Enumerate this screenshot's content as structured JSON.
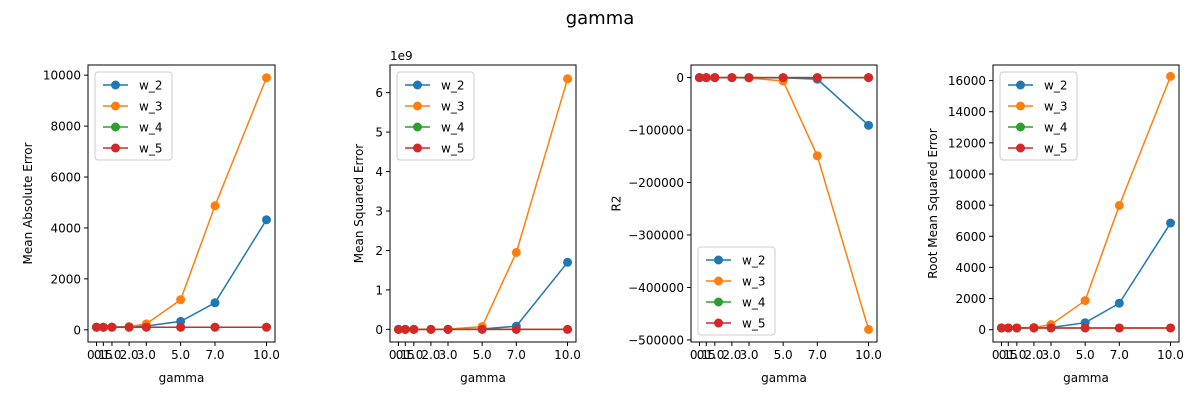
{
  "figure": {
    "suptitle": "gamma"
  },
  "chart_data": [
    {
      "type": "line",
      "xlabel": "gamma",
      "ylabel": "Mean Absolute Error",
      "y_offset_label": "",
      "x": [
        0.1,
        0.5,
        1.0,
        2.0,
        3.0,
        5.0,
        7.0,
        10.0
      ],
      "x_tick_labels": [
        "0.1",
        "0.5",
        "1.0",
        "2.0",
        "3.0",
        "5.0",
        "7.0",
        "10.0"
      ],
      "y_ticks": [
        0,
        2000,
        4000,
        6000,
        8000,
        10000
      ],
      "y_tick_labels": [
        "0",
        "2000",
        "4000",
        "6000",
        "8000",
        "10000"
      ],
      "ylim": [
        -480,
        10400
      ],
      "legend_position": "upper left",
      "series": [
        {
          "name": "w_2",
          "color": "#1f77b4",
          "values": [
            100,
            100,
            105,
            120,
            150,
            330,
            1060,
            4320
          ]
        },
        {
          "name": "w_3",
          "color": "#ff7f0e",
          "values": [
            100,
            100,
            105,
            125,
            230,
            1180,
            4870,
            9900
          ]
        },
        {
          "name": "w_4",
          "color": "#2ca02c",
          "values": [
            100,
            100,
            100,
            100,
            100,
            100,
            100,
            100
          ]
        },
        {
          "name": "w_5",
          "color": "#d62728",
          "values": [
            100,
            100,
            100,
            100,
            100,
            100,
            100,
            100
          ]
        }
      ]
    },
    {
      "type": "line",
      "xlabel": "gamma",
      "ylabel": "Mean Squared Error",
      "y_offset_label": "1e9",
      "x": [
        0.1,
        0.5,
        1.0,
        2.0,
        3.0,
        5.0,
        7.0,
        10.0
      ],
      "x_tick_labels": [
        "0.1",
        "0.5",
        "1.0",
        "2.0",
        "3.0",
        "5.0",
        "7.0",
        "10.0"
      ],
      "y_ticks": [
        0,
        1,
        2,
        3,
        4,
        5,
        6
      ],
      "y_tick_labels": [
        "0",
        "1",
        "2",
        "3",
        "4",
        "5",
        "6"
      ],
      "ylim": [
        -0.32,
        6.7
      ],
      "legend_position": "upper left",
      "series": [
        {
          "name": "w_2",
          "color": "#1f77b4",
          "values": [
            0,
            0,
            0,
            0,
            0,
            0.01,
            0.08,
            1.7
          ]
        },
        {
          "name": "w_3",
          "color": "#ff7f0e",
          "values": [
            0,
            0,
            0,
            0,
            0.005,
            0.07,
            1.95,
            6.35
          ]
        },
        {
          "name": "w_4",
          "color": "#2ca02c",
          "values": [
            0,
            0,
            0,
            0,
            0,
            0,
            0,
            0
          ]
        },
        {
          "name": "w_5",
          "color": "#d62728",
          "values": [
            0,
            0,
            0,
            0,
            0,
            0,
            0,
            0
          ]
        }
      ]
    },
    {
      "type": "line",
      "xlabel": "gamma",
      "ylabel": "R2",
      "y_offset_label": "",
      "x": [
        0.1,
        0.5,
        1.0,
        2.0,
        3.0,
        5.0,
        7.0,
        10.0
      ],
      "x_tick_labels": [
        "0.1",
        "0.5",
        "1.0",
        "2.0",
        "3.0",
        "5.0",
        "7.0",
        "10.0"
      ],
      "y_ticks": [
        0,
        -100000,
        -200000,
        -300000,
        -400000,
        -500000
      ],
      "y_tick_labels": [
        "0",
        "−100000",
        "−200000",
        "−300000",
        "−400000",
        "−500000"
      ],
      "ylim": [
        -504000,
        24000
      ],
      "legend_position": "lower left",
      "series": [
        {
          "name": "w_2",
          "color": "#1f77b4",
          "values": [
            0,
            0,
            0,
            0,
            -100,
            -500,
            -3000,
            -91000
          ]
        },
        {
          "name": "w_3",
          "color": "#ff7f0e",
          "values": [
            0,
            0,
            0,
            0,
            -700,
            -6500,
            -149000,
            -480000
          ]
        },
        {
          "name": "w_4",
          "color": "#2ca02c",
          "values": [
            0,
            0,
            0,
            0,
            0,
            0,
            0,
            0
          ]
        },
        {
          "name": "w_5",
          "color": "#d62728",
          "values": [
            0,
            0,
            0,
            0,
            0,
            0,
            0,
            0
          ]
        }
      ]
    },
    {
      "type": "line",
      "xlabel": "gamma",
      "ylabel": "Root Mean Squared Error",
      "y_offset_label": "",
      "x": [
        0.1,
        0.5,
        1.0,
        2.0,
        3.0,
        5.0,
        7.0,
        10.0
      ],
      "x_tick_labels": [
        "0.1",
        "0.5",
        "1.0",
        "2.0",
        "3.0",
        "5.0",
        "7.0",
        "10.0"
      ],
      "y_ticks": [
        0,
        2000,
        4000,
        6000,
        8000,
        10000,
        12000,
        14000,
        16000
      ],
      "y_tick_labels": [
        "0",
        "2000",
        "4000",
        "6000",
        "8000",
        "10000",
        "12000",
        "14000",
        "16000"
      ],
      "ylim": [
        -790,
        17000
      ],
      "legend_position": "upper left",
      "series": [
        {
          "name": "w_2",
          "color": "#1f77b4",
          "values": [
            110,
            110,
            110,
            120,
            140,
            450,
            1700,
            6850
          ]
        },
        {
          "name": "w_3",
          "color": "#ff7f0e",
          "values": [
            110,
            110,
            115,
            150,
            330,
            1870,
            7980,
            16270
          ]
        },
        {
          "name": "w_4",
          "color": "#2ca02c",
          "values": [
            110,
            110,
            110,
            110,
            110,
            110,
            110,
            110
          ]
        },
        {
          "name": "w_5",
          "color": "#d62728",
          "values": [
            110,
            110,
            110,
            110,
            110,
            110,
            110,
            110
          ]
        }
      ]
    }
  ]
}
